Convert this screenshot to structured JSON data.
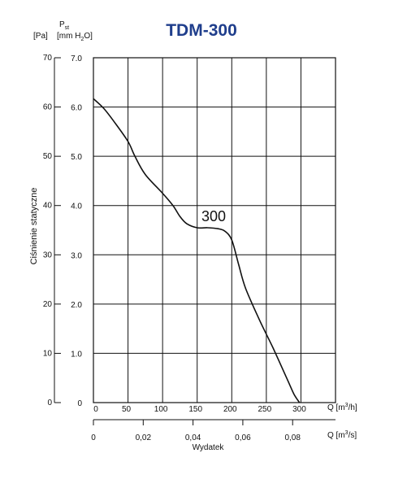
{
  "chart_data": {
    "type": "line",
    "title": "TDM-300",
    "y_unit_symbol": "P",
    "y_unit_subscript": "st",
    "y_unit_pa": "[Pa]",
    "y_unit_mmh2o": "[mm H",
    "y_unit_mmh2o_sub": "2",
    "y_unit_mmh2o_end": "O]",
    "ylabel": "Ciśnienie statyczne",
    "xlabel": "Wydatek",
    "x_unit_m3h": "Q [m",
    "x_unit_m3h_sup": "3",
    "x_unit_m3h_end": "/h]",
    "x_unit_m3s": "Q [m",
    "x_unit_m3s_sup": "3",
    "x_unit_m3s_end": "/s]",
    "y_ticks_pa": [
      "0",
      "10",
      "20",
      "30",
      "40",
      "50",
      "60",
      "70"
    ],
    "y_ticks_mm": [
      "0",
      "1.0",
      "2.0",
      "3.0",
      "4.0",
      "5.0",
      "6.0",
      "7.0"
    ],
    "x_ticks_m3h": [
      "0",
      "50",
      "100",
      "150",
      "200",
      "250",
      "300"
    ],
    "x_ticks_m3s": [
      "0",
      "0,02",
      "0,04",
      "0,06",
      "0,08"
    ],
    "xlim_m3h": [
      0,
      350
    ],
    "ylim_pa": [
      0,
      70
    ],
    "grid": true,
    "series": [
      {
        "name": "300",
        "color": "#111111",
        "x": [
          0,
          15,
          30,
          50,
          60,
          75,
          100,
          115,
          125,
          135,
          150,
          165,
          180,
          190,
          200,
          210,
          220,
          240,
          260,
          280,
          290,
          298
        ],
        "y": [
          61.7,
          59.7,
          57.0,
          53.0,
          50.0,
          46.3,
          42.5,
          40.0,
          37.8,
          36.3,
          35.5,
          35.5,
          35.3,
          34.8,
          33.0,
          28.0,
          23.2,
          16.8,
          11.0,
          4.8,
          1.7,
          0
        ]
      }
    ]
  }
}
